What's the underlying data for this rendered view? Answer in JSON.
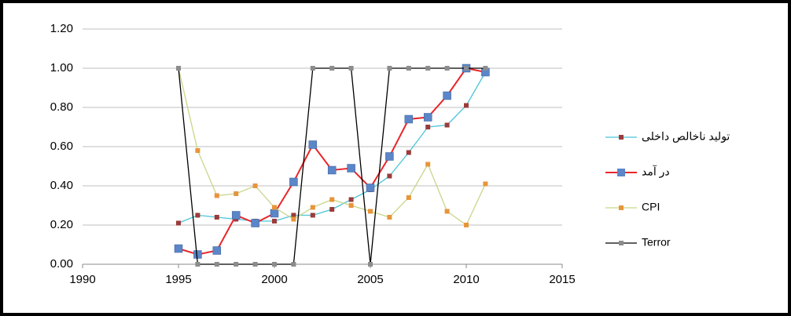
{
  "chart_data": {
    "type": "line",
    "x": [
      1995,
      1996,
      1997,
      1998,
      1999,
      2000,
      2001,
      2002,
      2003,
      2004,
      2005,
      2006,
      2007,
      2008,
      2009,
      2010,
      2011
    ],
    "series": [
      {
        "name": "تولید ناخالص داخلی",
        "color": "#4bc4d6",
        "marker_color": "#9b3b3b",
        "values": [
          0.21,
          0.25,
          0.24,
          0.23,
          0.22,
          0.22,
          0.25,
          0.25,
          0.28,
          0.33,
          0.38,
          0.45,
          0.57,
          0.7,
          0.71,
          0.81,
          0.98
        ]
      },
      {
        "name": "در آمد",
        "color": "#e8262a",
        "marker_color": "#5b86c8",
        "values": [
          0.08,
          0.05,
          0.07,
          0.25,
          0.21,
          0.26,
          0.42,
          0.61,
          0.48,
          0.49,
          0.39,
          0.55,
          0.74,
          0.75,
          0.86,
          1.0,
          0.98
        ]
      },
      {
        "name": "CPI",
        "color": "#c8d68a",
        "marker_color": "#e8953a",
        "values": [
          1.0,
          0.58,
          0.35,
          0.36,
          0.4,
          0.29,
          0.23,
          0.29,
          0.33,
          0.3,
          0.27,
          0.24,
          0.34,
          0.51,
          0.27,
          0.2,
          0.41
        ]
      },
      {
        "name": "Terror",
        "color": "#000000",
        "marker_color": "#8c8c8c",
        "values": [
          1,
          0,
          0,
          0,
          0,
          0,
          0,
          1,
          1,
          1,
          0,
          1,
          1,
          1,
          1,
          1,
          1
        ]
      }
    ],
    "xlim": [
      1990,
      2015
    ],
    "xticks": [
      1990,
      1995,
      2000,
      2005,
      2010,
      2015
    ],
    "ylim": [
      0,
      1.2
    ],
    "yticks": [
      {
        "value": 0,
        "label": "0.00"
      },
      {
        "value": 0.2,
        "label": "0.20"
      },
      {
        "value": 0.4,
        "label": "0.40"
      },
      {
        "value": 0.6,
        "label": "0.60"
      },
      {
        "value": 0.8,
        "label": "0.80"
      },
      {
        "value": 1,
        "label": "1.00"
      },
      {
        "value": 1.2,
        "label": "1.20"
      }
    ],
    "grid": true,
    "legend": "right"
  }
}
